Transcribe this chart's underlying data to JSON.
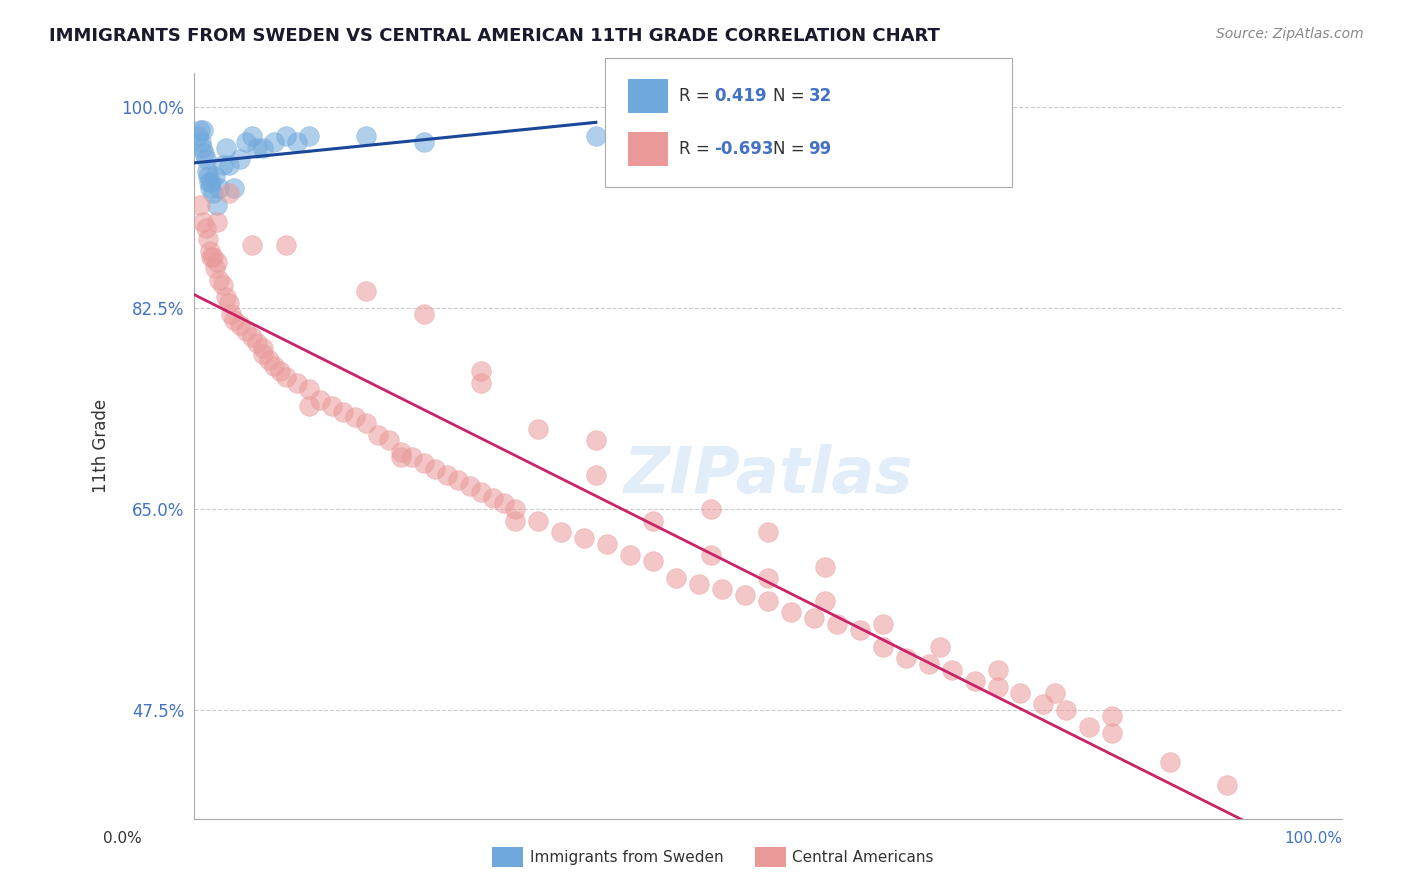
{
  "title": "IMMIGRANTS FROM SWEDEN VS CENTRAL AMERICAN 11TH GRADE CORRELATION CHART",
  "source": "Source: ZipAtlas.com",
  "ylabel": "11th Grade",
  "yticks": [
    47.5,
    65.0,
    82.5,
    100.0
  ],
  "ytick_labels": [
    "47.5%",
    "65.0%",
    "82.5%",
    "100.0%"
  ],
  "r_sweden": 0.419,
  "n_sweden": 32,
  "r_central": -0.693,
  "n_central": 99,
  "legend_label_sweden": "Immigrants from Sweden",
  "legend_label_central": "Central Americans",
  "color_sweden": "#6fa8dc",
  "color_central": "#ea9999",
  "line_color_sweden": "#1a4799",
  "line_color_central": "#cc2266",
  "watermark": "ZIPatlas",
  "sweden_x": [
    0.3,
    0.5,
    0.6,
    0.7,
    0.8,
    0.9,
    1.0,
    1.1,
    1.2,
    1.3,
    1.4,
    1.5,
    1.6,
    1.8,
    2.0,
    2.2,
    2.5,
    2.8,
    3.0,
    3.5,
    4.0,
    4.5,
    5.0,
    5.5,
    6.0,
    7.0,
    8.0,
    9.0,
    10.0,
    15.0,
    20.0,
    35.0
  ],
  "sweden_y": [
    97.5,
    98.0,
    97.0,
    96.5,
    98.0,
    96.0,
    95.5,
    94.5,
    94.0,
    93.5,
    93.0,
    93.5,
    92.5,
    94.0,
    91.5,
    93.0,
    95.0,
    96.5,
    95.0,
    93.0,
    95.5,
    97.0,
    97.5,
    96.5,
    96.5,
    97.0,
    97.5,
    97.0,
    97.5,
    97.5,
    97.0,
    97.5
  ],
  "central_x": [
    0.5,
    0.8,
    1.0,
    1.2,
    1.4,
    1.6,
    1.8,
    2.0,
    2.2,
    2.5,
    2.8,
    3.0,
    3.2,
    3.5,
    4.0,
    4.5,
    5.0,
    5.5,
    6.0,
    6.5,
    7.0,
    7.5,
    8.0,
    9.0,
    10.0,
    11.0,
    12.0,
    13.0,
    14.0,
    15.0,
    16.0,
    17.0,
    18.0,
    19.0,
    20.0,
    21.0,
    22.0,
    23.0,
    24.0,
    25.0,
    26.0,
    27.0,
    28.0,
    30.0,
    32.0,
    34.0,
    36.0,
    38.0,
    40.0,
    42.0,
    44.0,
    46.0,
    48.0,
    50.0,
    52.0,
    54.0,
    56.0,
    58.0,
    60.0,
    62.0,
    64.0,
    66.0,
    68.0,
    70.0,
    72.0,
    74.0,
    76.0,
    78.0,
    80.0,
    85.0,
    90.0,
    20.0,
    25.0,
    30.0,
    35.0,
    40.0,
    45.0,
    50.0,
    55.0,
    60.0,
    65.0,
    70.0,
    75.0,
    80.0,
    50.0,
    55.0,
    45.0,
    35.0,
    25.0,
    15.0,
    8.0,
    5.0,
    3.0,
    2.0,
    1.5,
    6.0,
    10.0,
    18.0,
    28.0
  ],
  "central_y": [
    91.5,
    90.0,
    89.5,
    88.5,
    87.5,
    87.0,
    86.0,
    86.5,
    85.0,
    84.5,
    83.5,
    83.0,
    82.0,
    81.5,
    81.0,
    80.5,
    80.0,
    79.5,
    78.5,
    78.0,
    77.5,
    77.0,
    76.5,
    76.0,
    75.5,
    74.5,
    74.0,
    73.5,
    73.0,
    72.5,
    71.5,
    71.0,
    70.0,
    69.5,
    69.0,
    68.5,
    68.0,
    67.5,
    67.0,
    66.5,
    66.0,
    65.5,
    65.0,
    64.0,
    63.0,
    62.5,
    62.0,
    61.0,
    60.5,
    59.0,
    58.5,
    58.0,
    57.5,
    57.0,
    56.0,
    55.5,
    55.0,
    54.5,
    53.0,
    52.0,
    51.5,
    51.0,
    50.0,
    49.5,
    49.0,
    48.0,
    47.5,
    46.0,
    45.5,
    43.0,
    41.0,
    82.0,
    76.0,
    72.0,
    68.0,
    64.0,
    61.0,
    59.0,
    57.0,
    55.0,
    53.0,
    51.0,
    49.0,
    47.0,
    63.0,
    60.0,
    65.0,
    71.0,
    77.0,
    84.0,
    88.0,
    88.0,
    92.5,
    90.0,
    87.0,
    79.0,
    74.0,
    69.5,
    64.0
  ]
}
